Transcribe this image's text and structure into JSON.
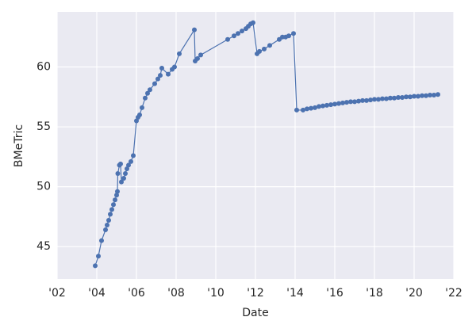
{
  "chart_data": {
    "type": "line",
    "xlabel": "Date",
    "ylabel": "BMeTric",
    "xlim": [
      2002,
      2022
    ],
    "ylim": [
      42.3,
      64.6
    ],
    "xticks": [
      {
        "value": 2002,
        "label": "'02"
      },
      {
        "value": 2004,
        "label": "'04"
      },
      {
        "value": 2006,
        "label": "'06"
      },
      {
        "value": 2008,
        "label": "'08"
      },
      {
        "value": 2010,
        "label": "'10"
      },
      {
        "value": 2012,
        "label": "'12"
      },
      {
        "value": 2014,
        "label": "'14"
      },
      {
        "value": 2016,
        "label": "'16"
      },
      {
        "value": 2018,
        "label": "'18"
      },
      {
        "value": 2020,
        "label": "'20"
      },
      {
        "value": 2022,
        "label": "'22"
      }
    ],
    "yticks": [
      45,
      50,
      55,
      60
    ],
    "grid": true,
    "series": [
      {
        "color": "#4c72b0",
        "x": [
          2003.92,
          2004.08,
          2004.24,
          2004.44,
          2004.52,
          2004.6,
          2004.68,
          2004.76,
          2004.84,
          2004.92,
          2005.0,
          2005.04,
          2005.06,
          2005.14,
          2005.2,
          2005.24,
          2005.36,
          2005.44,
          2005.52,
          2005.6,
          2005.72,
          2005.84,
          2006.0,
          2006.08,
          2006.16,
          2006.28,
          2006.44,
          2006.56,
          2006.68,
          2006.92,
          2007.08,
          2007.2,
          2007.28,
          2007.6,
          2007.8,
          2007.92,
          2008.16,
          2008.92,
          2008.96,
          2009.08,
          2009.24,
          2010.6,
          2010.92,
          2011.12,
          2011.32,
          2011.52,
          2011.64,
          2011.76,
          2011.88,
          2012.08,
          2012.2,
          2012.44,
          2012.72,
          2013.2,
          2013.36,
          2013.52,
          2013.68,
          2013.92,
          2014.08,
          2014.4,
          2014.6,
          2014.8,
          2015.0,
          2015.2,
          2015.4,
          2015.6,
          2015.8,
          2016.0,
          2016.2,
          2016.4,
          2016.6,
          2016.8,
          2017.0,
          2017.2,
          2017.4,
          2017.6,
          2017.8,
          2018.0,
          2018.2,
          2018.4,
          2018.6,
          2018.8,
          2019.0,
          2019.2,
          2019.4,
          2019.6,
          2019.8,
          2020.0,
          2020.2,
          2020.4,
          2020.6,
          2020.8,
          2021.0,
          2021.2
        ],
        "values": [
          43.4,
          44.2,
          45.5,
          46.4,
          46.8,
          47.2,
          47.7,
          48.1,
          48.5,
          48.9,
          49.3,
          49.6,
          51.1,
          51.8,
          51.9,
          50.4,
          50.7,
          51.1,
          51.5,
          51.8,
          52.1,
          52.6,
          55.5,
          55.8,
          56.0,
          56.6,
          57.4,
          57.8,
          58.1,
          58.6,
          59.0,
          59.3,
          59.9,
          59.4,
          59.8,
          60.0,
          61.1,
          63.1,
          60.5,
          60.7,
          61.0,
          62.3,
          62.6,
          62.8,
          63.0,
          63.2,
          63.4,
          63.6,
          63.7,
          61.1,
          61.3,
          61.5,
          61.8,
          62.3,
          62.5,
          62.5,
          62.6,
          62.8,
          56.4,
          56.4,
          56.5,
          56.55,
          56.6,
          56.7,
          56.75,
          56.8,
          56.85,
          56.9,
          56.95,
          57.0,
          57.05,
          57.1,
          57.1,
          57.15,
          57.2,
          57.2,
          57.25,
          57.3,
          57.3,
          57.35,
          57.35,
          57.4,
          57.4,
          57.45,
          57.45,
          57.5,
          57.5,
          57.55,
          57.55,
          57.6,
          57.6,
          57.65,
          57.65,
          57.7
        ]
      }
    ]
  }
}
